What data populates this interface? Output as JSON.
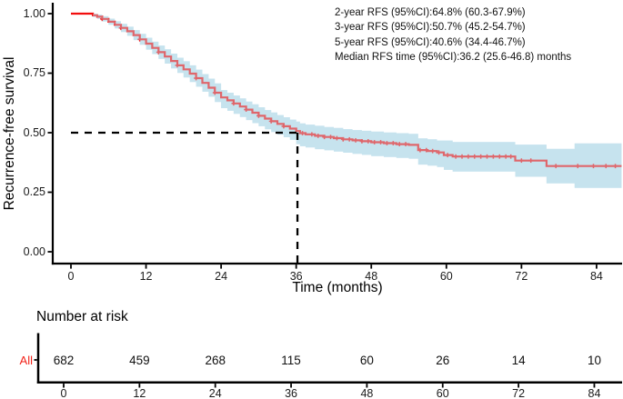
{
  "figure": {
    "background": "#ffffff"
  },
  "colors": {
    "curve": "#f20d0d",
    "band": "#c6e3ee",
    "band_overlay": "rgba(198,227,238,0.42)",
    "dashed_line": "#000000",
    "axis": "#000000",
    "risk_label": "#f2231a"
  },
  "chart_data": {
    "type": "line",
    "subtype": "kaplan-meier-step",
    "title": "",
    "xlabel": "Time (months)",
    "ylabel": "Recurrence-free survival",
    "xticks": [
      "0",
      "12",
      "24",
      "36",
      "48",
      "60",
      "72",
      "84"
    ],
    "xtick_values": [
      0,
      12,
      24,
      36,
      48,
      60,
      72,
      84
    ],
    "yticks": [
      "1.00",
      "0.75",
      "0.50",
      "0.25",
      "0.00"
    ],
    "ytick_values": [
      1.0,
      0.75,
      0.5,
      0.25,
      0.0
    ],
    "xlim": [
      0,
      88
    ],
    "ylim": [
      0,
      1
    ],
    "grid": false,
    "legend": "none",
    "annotation_lines": [
      "2-year RFS (95%CI):64.8% (60.3-67.9%)",
      "3-year RFS (95%CI):50.7% (45.2-54.7%)",
      "5-year RFS (95%CI):40.6% (34.4-46.7%)",
      "Median RFS time (95%CI):36.2 (25.6-46.8) months"
    ],
    "reference_lines": {
      "median_time_months": 36.2,
      "survival_level": 0.5,
      "style": "dashed"
    },
    "series": [
      {
        "name": "All",
        "points_format": [
          "time",
          "survival",
          "ci_low",
          "ci_high"
        ],
        "points": [
          [
            0,
            1.0,
            1.0,
            1.0
          ],
          [
            2.8,
            1.0,
            1.0,
            1.0
          ],
          [
            3.5,
            0.993,
            0.986,
            1.0
          ],
          [
            4.2,
            0.987,
            0.978,
            0.996
          ],
          [
            5,
            0.978,
            0.967,
            0.989
          ],
          [
            6,
            0.966,
            0.953,
            0.979
          ],
          [
            7,
            0.953,
            0.938,
            0.968
          ],
          [
            8,
            0.94,
            0.923,
            0.957
          ],
          [
            9,
            0.926,
            0.907,
            0.945
          ],
          [
            10,
            0.91,
            0.889,
            0.931
          ],
          [
            11,
            0.892,
            0.869,
            0.915
          ],
          [
            12,
            0.874,
            0.849,
            0.899
          ],
          [
            13,
            0.856,
            0.83,
            0.882
          ],
          [
            14,
            0.838,
            0.81,
            0.866
          ],
          [
            15,
            0.82,
            0.79,
            0.85
          ],
          [
            16,
            0.801,
            0.77,
            0.832
          ],
          [
            17,
            0.783,
            0.751,
            0.815
          ],
          [
            18,
            0.766,
            0.732,
            0.8
          ],
          [
            19,
            0.748,
            0.713,
            0.783
          ],
          [
            20,
            0.729,
            0.693,
            0.765
          ],
          [
            21,
            0.709,
            0.672,
            0.746
          ],
          [
            22,
            0.689,
            0.651,
            0.727
          ],
          [
            23,
            0.668,
            0.629,
            0.707
          ],
          [
            24,
            0.648,
            0.603,
            0.679
          ],
          [
            25,
            0.636,
            0.592,
            0.668
          ],
          [
            26,
            0.623,
            0.579,
            0.656
          ],
          [
            27,
            0.61,
            0.566,
            0.644
          ],
          [
            28,
            0.597,
            0.553,
            0.631
          ],
          [
            29,
            0.584,
            0.54,
            0.619
          ],
          [
            30,
            0.571,
            0.527,
            0.607
          ],
          [
            31,
            0.559,
            0.514,
            0.595
          ],
          [
            32,
            0.548,
            0.503,
            0.585
          ],
          [
            33,
            0.537,
            0.492,
            0.574
          ],
          [
            34,
            0.527,
            0.481,
            0.565
          ],
          [
            35,
            0.517,
            0.47,
            0.555
          ],
          [
            36,
            0.507,
            0.452,
            0.547
          ],
          [
            36.6,
            0.498,
            0.443,
            0.539
          ],
          [
            37.5,
            0.493,
            0.438,
            0.534
          ],
          [
            39,
            0.487,
            0.431,
            0.529
          ],
          [
            40.5,
            0.482,
            0.426,
            0.524
          ],
          [
            42,
            0.477,
            0.421,
            0.52
          ],
          [
            43.5,
            0.472,
            0.416,
            0.515
          ],
          [
            45,
            0.468,
            0.411,
            0.511
          ],
          [
            46.5,
            0.464,
            0.407,
            0.508
          ],
          [
            48,
            0.46,
            0.402,
            0.505
          ],
          [
            50,
            0.456,
            0.398,
            0.501
          ],
          [
            52,
            0.452,
            0.394,
            0.498
          ],
          [
            54,
            0.449,
            0.391,
            0.495
          ],
          [
            55.5,
            0.427,
            0.366,
            0.476
          ],
          [
            57,
            0.423,
            0.362,
            0.472
          ],
          [
            58.5,
            0.417,
            0.356,
            0.467
          ],
          [
            59.6,
            0.406,
            0.344,
            0.467
          ],
          [
            61,
            0.4,
            0.337,
            0.461
          ],
          [
            71,
            0.383,
            0.315,
            0.45
          ],
          [
            76,
            0.36,
            0.287,
            0.432
          ],
          [
            80.5,
            0.36,
            0.268,
            0.455
          ],
          [
            88,
            0.36,
            0.268,
            0.455
          ]
        ],
        "censor_times": [
          5,
          8,
          11,
          14,
          17,
          20,
          23,
          26,
          28,
          30,
          32,
          34,
          37,
          38.5,
          39.5,
          40.5,
          41.5,
          42.5,
          43.5,
          44.5,
          45.5,
          46.5,
          47.5,
          48.5,
          49.5,
          50.5,
          51.5,
          52.5,
          53.5,
          55.8,
          56.8,
          57.8,
          58.8,
          60.2,
          61.5,
          62.5,
          63.5,
          64.5,
          65.5,
          66.5,
          67.5,
          68.5,
          69.5,
          70.3,
          72,
          73.5,
          77.5,
          81,
          83.5,
          85.5,
          87
        ]
      }
    ]
  },
  "risk_table": {
    "title": "Number at risk",
    "row_label": "All",
    "counts": [
      "682",
      "459",
      "268",
      "115",
      "60",
      "26",
      "14",
      "10"
    ],
    "xticks": [
      "0",
      "12",
      "24",
      "36",
      "48",
      "60",
      "72",
      "84"
    ],
    "xtick_values": [
      0,
      12,
      24,
      36,
      48,
      60,
      72,
      84
    ]
  }
}
